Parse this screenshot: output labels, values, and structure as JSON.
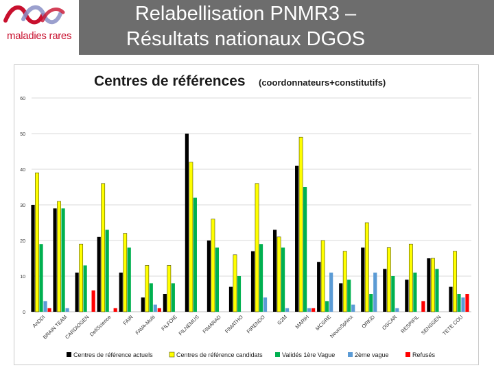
{
  "header": {
    "logo_text": "maladies rares",
    "title_line1": "Relabellisation PNMR3 –",
    "title_line2": "Résultats nationaux DGOS"
  },
  "chart_data": {
    "type": "bar",
    "title": "Centres de références",
    "subtitle": "(coordonnateurs+constitutifs)",
    "xlabel": "",
    "ylabel": "",
    "ylim": [
      0,
      60
    ],
    "yticks": [
      "0",
      "10",
      "20",
      "30",
      "40",
      "50",
      "60"
    ],
    "grid": true,
    "legend_position": "bottom",
    "categories": [
      "AnDDI",
      "BRAIN TEAM",
      "CARDIOGEN",
      "DefiScience",
      "FAIR",
      "FAVA-Multi",
      "FILFOIE",
      "FILNEMUS",
      "FIMARAD",
      "FIMATHO",
      "FIRENDO",
      "G2M",
      "MARIH",
      "MCGRE",
      "NeuroSphinx",
      "ORKiD",
      "OSCAR",
      "RESPIFIL",
      "SENSGEN",
      "TETE COU"
    ],
    "series": [
      {
        "name": "Centres de référence actuels",
        "color": "#000000",
        "values": [
          30,
          29,
          11,
          21,
          11,
          4,
          5,
          50,
          20,
          7,
          17,
          23,
          41,
          14,
          8,
          18,
          12,
          9,
          15,
          7
        ]
      },
      {
        "name": "Centres de référence candidats",
        "color": "#ffff00",
        "values": [
          39,
          31,
          19,
          36,
          22,
          13,
          13,
          42,
          26,
          16,
          36,
          21,
          49,
          20,
          17,
          25,
          18,
          19,
          15,
          17
        ]
      },
      {
        "name": "Validés 1ère Vague",
        "color": "#00b050",
        "values": [
          19,
          29,
          13,
          23,
          18,
          8,
          8,
          32,
          18,
          10,
          19,
          18,
          35,
          3,
          9,
          5,
          10,
          11,
          12,
          5
        ]
      },
      {
        "name": "2ème vague",
        "color": "#5b9bd5",
        "values": [
          3,
          1,
          0,
          0,
          0,
          2,
          0,
          0,
          0,
          0,
          4,
          1,
          1,
          11,
          2,
          11,
          1,
          0,
          0,
          4
        ]
      },
      {
        "name": "Refusés",
        "color": "#ff0000",
        "values": [
          1,
          0,
          6,
          1,
          0,
          1,
          0,
          0,
          0,
          0,
          0,
          0,
          1,
          0,
          0,
          0,
          0,
          3,
          0,
          5
        ]
      }
    ]
  }
}
